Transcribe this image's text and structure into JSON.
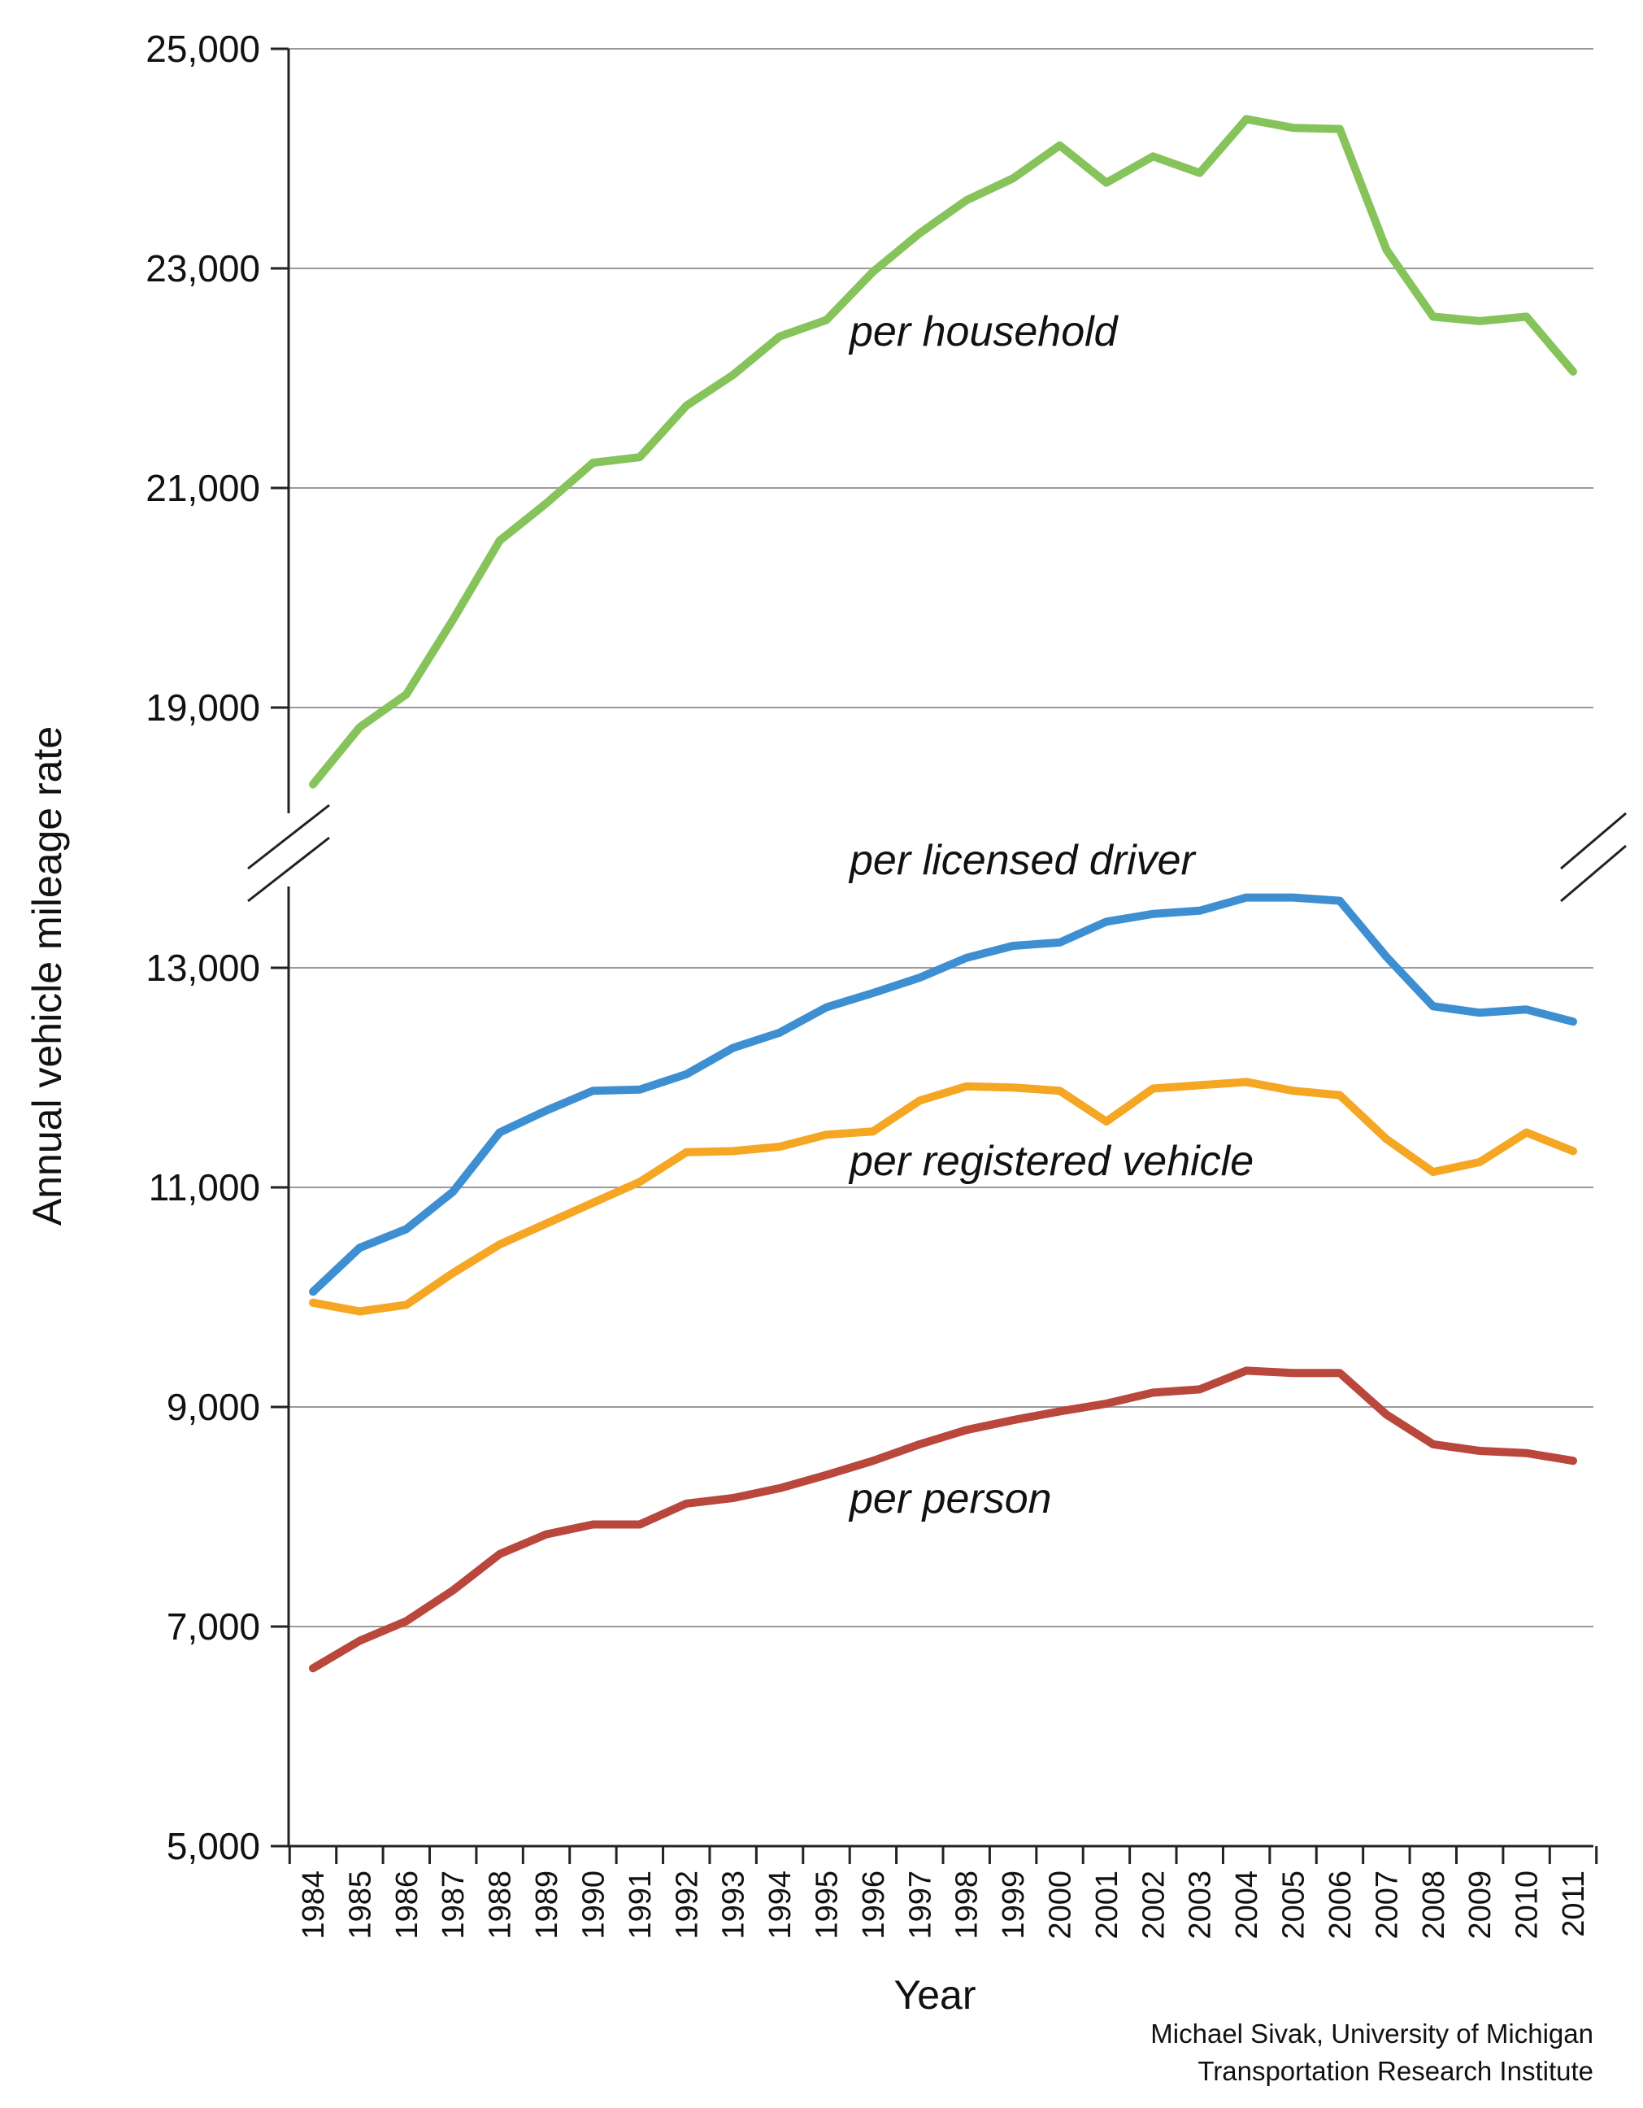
{
  "chart_data": {
    "type": "line",
    "xlabel": "Year",
    "ylabel": "Annual vehicle mileage rate",
    "x": [
      "1984",
      "1985",
      "1986",
      "1987",
      "1988",
      "1989",
      "1990",
      "1991",
      "1992",
      "1993",
      "1994",
      "1995",
      "1996",
      "1997",
      "1998",
      "1999",
      "2000",
      "2001",
      "2002",
      "2003",
      "2004",
      "2005",
      "2006",
      "2007",
      "2008",
      "2009",
      "2010",
      "2011"
    ],
    "yticks_lower": [
      "5,000",
      "7,000",
      "9,000",
      "11,000",
      "13,000"
    ],
    "yticks_upper": [
      "19,000",
      "21,000",
      "23,000",
      "25,000"
    ],
    "broken_axis": {
      "lower_range": [
        5000,
        13000
      ],
      "upper_range": [
        19000,
        25000
      ]
    },
    "grid": true,
    "series": [
      {
        "name": "per household",
        "color": "#86c35a",
        "values": [
          18300,
          18820,
          19120,
          19800,
          20520,
          20860,
          21230,
          21280,
          21750,
          22030,
          22380,
          22530,
          22970,
          23320,
          23620,
          23820,
          24120,
          23780,
          24020,
          23870,
          24360,
          24280,
          24270,
          23170,
          22560,
          22520,
          22560,
          22060
        ]
      },
      {
        "name": "per licensed driver",
        "color": "#3d8fd1",
        "values": [
          10050,
          10450,
          10620,
          10960,
          11500,
          11700,
          11880,
          11890,
          12030,
          12270,
          12410,
          12640,
          12770,
          12910,
          13090,
          13200,
          13230,
          13420,
          13490,
          13520,
          13640,
          13640,
          13610,
          13100,
          12650,
          12590,
          12620,
          12510
        ]
      },
      {
        "name": "per registered vehicle",
        "color": "#f5a623",
        "values": [
          9950,
          9870,
          9930,
          10220,
          10480,
          10670,
          10860,
          11050,
          11320,
          11330,
          11370,
          11480,
          11510,
          11790,
          11920,
          11910,
          11880,
          11600,
          11900,
          11930,
          11960,
          11880,
          11840,
          11440,
          11140,
          11230,
          11500,
          11330
        ]
      },
      {
        "name": "per person",
        "color": "#b9473b",
        "values": [
          6620,
          6870,
          7050,
          7330,
          7660,
          7840,
          7930,
          7930,
          8120,
          8170,
          8260,
          8380,
          8510,
          8660,
          8790,
          8880,
          8960,
          9030,
          9130,
          9160,
          9330,
          9310,
          9310,
          8930,
          8660,
          8600,
          8580,
          8510
        ]
      }
    ],
    "credit": [
      "Michael Sivak, University of Michigan",
      "Transportation Research Institute"
    ]
  }
}
